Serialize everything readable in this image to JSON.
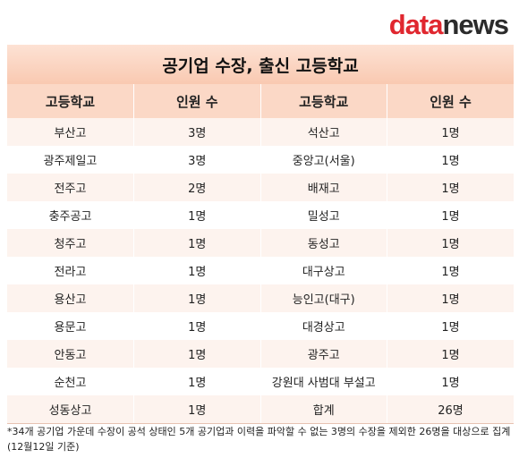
{
  "logo": {
    "part1": "data",
    "part2": "news"
  },
  "title": "공기업 수장, 출신 고등학교",
  "headers": [
    "고등학교",
    "인원 수",
    "고등학교",
    "인원 수"
  ],
  "rows": [
    [
      "부산고",
      "3명",
      "석산고",
      "1명"
    ],
    [
      "광주제일고",
      "3명",
      "중앙고(서울)",
      "1명"
    ],
    [
      "전주고",
      "2명",
      "배재고",
      "1명"
    ],
    [
      "충주공고",
      "1명",
      "밀성고",
      "1명"
    ],
    [
      "청주고",
      "1명",
      "동성고",
      "1명"
    ],
    [
      "전라고",
      "1명",
      "대구상고",
      "1명"
    ],
    [
      "용산고",
      "1명",
      "능인고(대구)",
      "1명"
    ],
    [
      "용문고",
      "1명",
      "대경상고",
      "1명"
    ],
    [
      "안동고",
      "1명",
      "광주고",
      "1명"
    ],
    [
      "순천고",
      "1명",
      "강원대 사범대 부설고",
      "1명"
    ],
    [
      "성동상고",
      "1명",
      "합계",
      "26명"
    ]
  ],
  "footnote": "*34개 공기업 가운데 수장이 공석 상태인 5개 공기업과 이력을 파악할 수 없는 3명의 수장을 제외한 26명을 대상으로 집계(12월12일 기준)"
}
